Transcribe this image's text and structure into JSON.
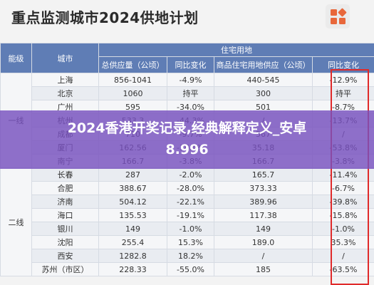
{
  "title": "重点监测城市2024供地计划",
  "logo": {
    "icon": "orange-grid-logo-icon",
    "color": "#e8673a"
  },
  "table": {
    "headers": {
      "tier": "能级",
      "city": "城市",
      "group_residential": "住宅用地",
      "supply": "总供应量（公顷）",
      "yoy1": "同比变化",
      "residential_supply": "商品住宅用地供应（公顷）",
      "yoy2": "同比变化"
    },
    "tiers": {
      "first": "一线",
      "second": "二线"
    },
    "rows": [
      {
        "city": "上海",
        "supply": "856-1041",
        "yoy1": "-4.9%",
        "res": "440-545",
        "yoy2": "-12.9%"
      },
      {
        "city": "北京",
        "supply": "1060",
        "yoy1": "持平",
        "res": "300",
        "yoy2": "持平"
      },
      {
        "city": "广州",
        "supply": "595",
        "yoy1": "-34.0%",
        "res": "501",
        "yoy2": "-8.7%"
      },
      {
        "city": "杭州",
        "supply": "533.3",
        "yoy1": "-44.3%",
        "res": "/",
        "yoy2": "-13.7%"
      },
      {
        "city": "成都",
        "supply": "710",
        "yoy1": "-9.7%",
        "res": "567",
        "yoy2": "/"
      },
      {
        "city": "厦门",
        "supply": "162.56",
        "yoy1": "-36.4%",
        "res": "35.18",
        "yoy2": "-53.8%"
      },
      {
        "city": "南宁",
        "supply": "166.7",
        "yoy1": "-3.8%",
        "res": "166.7",
        "yoy2": "-3.8%"
      },
      {
        "city": "长春",
        "supply": "287",
        "yoy1": "-2.0%",
        "res": "165.7",
        "yoy2": "-11.4%"
      },
      {
        "city": "合肥",
        "supply": "388.67",
        "yoy1": "-28.0%",
        "res": "373.33",
        "yoy2": "-6.7%"
      },
      {
        "city": "济南",
        "supply": "504.12",
        "yoy1": "-22.1%",
        "res": "389.96",
        "yoy2": "-39.8%"
      },
      {
        "city": "海口",
        "supply": "135.53",
        "yoy1": "-19.1%",
        "res": "117.38",
        "yoy2": "-15.8%"
      },
      {
        "city": "银川",
        "supply": "149",
        "yoy1": "-1.0%",
        "res": "149",
        "yoy2": "-1.0%"
      },
      {
        "city": "沈阳",
        "supply": "255.4",
        "yoy1": "15.3%",
        "res": "189.0",
        "yoy2": "35.3%"
      },
      {
        "city": "西安",
        "supply": "1282.8",
        "yoy1": "18.2%",
        "res": "/",
        "yoy2": "/"
      },
      {
        "city": "苏州（市区）",
        "supply": "228.33",
        "yoy1": "-55.0%",
        "res": "185",
        "yoy2": "-63.5%"
      }
    ]
  },
  "overlay": {
    "line1": "2024香港开奖记录,经典解释定义_安卓",
    "line2": "8.996"
  },
  "colors": {
    "header": "#5f7db5",
    "highlight_box": "#e02a2a",
    "overlay": "#7850be"
  }
}
